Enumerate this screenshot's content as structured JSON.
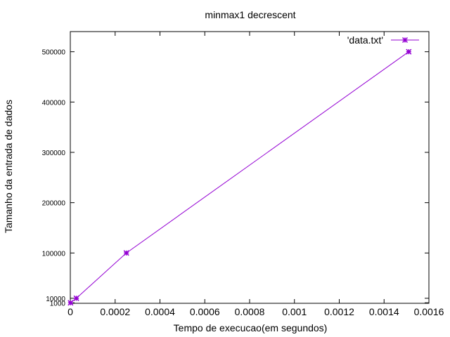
{
  "chart_data": {
    "type": "line",
    "title": "minmax1 decrescent",
    "xlabel": "Tempo de execucao(em segundos)",
    "ylabel": "Tamanho da entrada de dados",
    "xlim": [
      0,
      0.0016
    ],
    "ylim": [
      0,
      540000
    ],
    "x_ticks": [
      0,
      0.0002,
      0.0004,
      0.0006,
      0.0008,
      0.001,
      0.0012,
      0.0014,
      0.0016
    ],
    "x_tick_labels": [
      "0",
      "0.0002",
      "0.0004",
      "0.0006",
      "0.0008",
      "0.001",
      "0.0012",
      "0.0014",
      "0.0016"
    ],
    "y_ticks": [
      1000,
      10000,
      100000,
      200000,
      300000,
      400000,
      500000
    ],
    "y_tick_labels": [
      "1000",
      "10000",
      "100000",
      "200000",
      "300000",
      "400000",
      "500000"
    ],
    "grid": false,
    "legend_position": "top-right",
    "series": [
      {
        "name": "'data.txt'",
        "color": "#9400d3",
        "marker": "star",
        "x": [
          1e-06,
          2.7e-05,
          0.00025,
          0.00151
        ],
        "y": [
          1000,
          10000,
          100000,
          500000
        ]
      }
    ]
  }
}
